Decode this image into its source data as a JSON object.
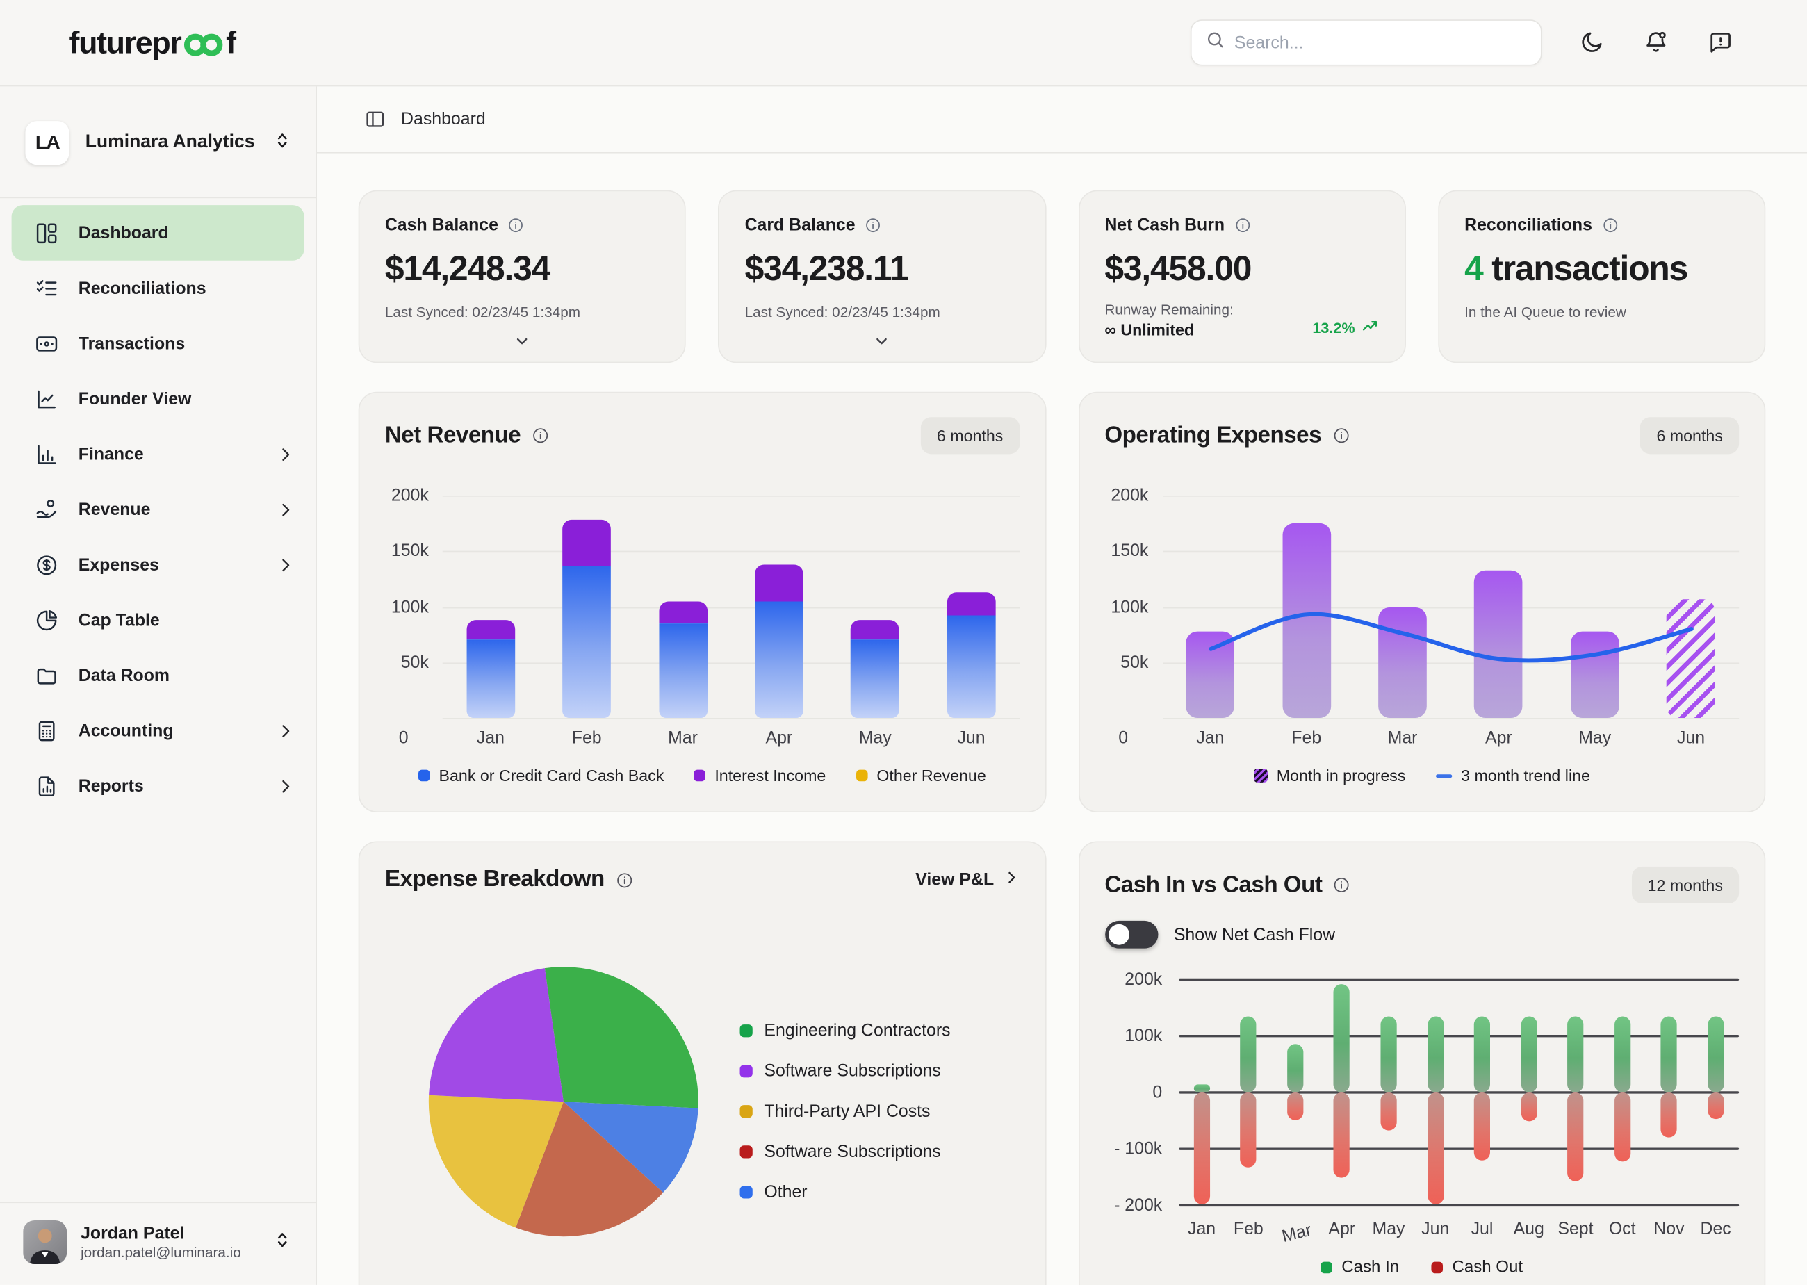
{
  "header": {
    "brand_prefix": "futurepr",
    "brand_suffix": "f",
    "brand_accent": "#2fbe56",
    "search_placeholder": "Search...",
    "icons": [
      "moon-icon",
      "bell-dot-icon",
      "feedback-bubble-icon"
    ]
  },
  "sidebar": {
    "workspace": {
      "initials": "LA",
      "name": "Luminara Analytics"
    },
    "items": [
      {
        "label": "Dashboard",
        "icon": "layout-dashboard",
        "active": true,
        "chevron": false
      },
      {
        "label": "Reconciliations",
        "icon": "list-checks",
        "active": false,
        "chevron": false
      },
      {
        "label": "Transactions",
        "icon": "credit-card",
        "active": false,
        "chevron": false
      },
      {
        "label": "Founder View",
        "icon": "line-chart",
        "active": false,
        "chevron": false
      },
      {
        "label": "Finance",
        "icon": "bar-chart",
        "active": false,
        "chevron": true
      },
      {
        "label": "Revenue",
        "icon": "hand-coin",
        "active": false,
        "chevron": true
      },
      {
        "label": "Expenses",
        "icon": "dollar-circle",
        "active": false,
        "chevron": true
      },
      {
        "label": "Cap Table",
        "icon": "pie-chart",
        "active": false,
        "chevron": false
      },
      {
        "label": "Data Room",
        "icon": "folder",
        "active": false,
        "chevron": false
      },
      {
        "label": "Accounting",
        "icon": "calculator",
        "active": false,
        "chevron": true
      },
      {
        "label": "Reports",
        "icon": "file-chart",
        "active": false,
        "chevron": true
      }
    ],
    "active_bg": "#cde8cc",
    "user": {
      "name": "Jordan Patel",
      "email": "jordan.patel@luminara.io"
    }
  },
  "breadcrumb": {
    "label": "Dashboard"
  },
  "stat_cards": [
    {
      "title": "Cash Balance",
      "value": "$14,248.34",
      "footnote": "Last Synced: 02/23/45 1:34pm"
    },
    {
      "title": "Card Balance",
      "value": "$34,238.11",
      "footnote": "Last Synced: 02/23/45 1:34pm"
    },
    {
      "title": "Net Cash Burn",
      "value": "$3,458.00",
      "footnote_label": "Runway Remaining:",
      "footnote_value": "∞ Unlimited",
      "delta": "13.2%",
      "delta_color": "#16a34a"
    },
    {
      "title": "Reconciliations",
      "value_highlight": "4",
      "value_rest": " transactions",
      "footnote": "In the AI Queue to review",
      "highlight_color": "#16a34a"
    }
  ],
  "charts": {
    "net_revenue": {
      "title": "Net Revenue",
      "badge": "6 months",
      "chart_data": {
        "type": "bar",
        "stacked": true,
        "categories": [
          "Jan",
          "Feb",
          "Mar",
          "Apr",
          "May",
          "Jun"
        ],
        "series": [
          {
            "name": "Bank or Credit Card Cash Back",
            "color": "#2d66ec",
            "values": [
              70,
              137,
              85,
              105,
              70,
              92
            ]
          },
          {
            "name": "Interest Income",
            "color": "#8a1fd8",
            "values": [
              18,
              41,
              20,
              33,
              18,
              21
            ]
          },
          {
            "name": "Other Revenue",
            "color": "#eab308",
            "values": [
              0,
              0,
              0,
              0,
              0,
              0
            ]
          }
        ],
        "unit": "k",
        "ylim": [
          0,
          200
        ],
        "y_ticks": [
          "200k",
          "150k",
          "100k",
          "50k"
        ],
        "zero_label": "0"
      },
      "legend": [
        {
          "label": "Bank or Credit Card Cash Back",
          "color": "#2563eb"
        },
        {
          "label": "Interest Income",
          "color": "#8a1fd8"
        },
        {
          "label": "Other Revenue",
          "color": "#eab308"
        }
      ]
    },
    "operating_expenses": {
      "title": "Operating Expenses",
      "badge": "6 months",
      "chart_data": {
        "type": "bar",
        "categories": [
          "Jan",
          "Feb",
          "Mar",
          "Apr",
          "May",
          "Jun"
        ],
        "values": [
          78,
          175,
          100,
          133,
          78,
          107
        ],
        "in_progress_index": 5,
        "trend_line": {
          "name": "3 month trend line",
          "color": "#2563eb",
          "values": [
            62,
            93,
            76,
            53,
            57,
            80
          ]
        },
        "unit": "k",
        "ylim": [
          0,
          200
        ],
        "y_ticks": [
          "200k",
          "150k",
          "100k",
          "50k"
        ],
        "zero_label": "0"
      },
      "legend": [
        {
          "label": "Month in progress",
          "swatch": "hatched"
        },
        {
          "label": "3 month trend line",
          "swatch": "line"
        }
      ]
    },
    "expense_breakdown": {
      "title": "Expense Breakdown",
      "link_label": "View P&L",
      "chart_data": {
        "type": "pie",
        "start_angle_deg": -98,
        "slices": [
          {
            "label": "Engineering Contractors",
            "value": 28,
            "color": "#3bb04a"
          },
          {
            "label": "Other",
            "value": 11,
            "color": "#4d80e4"
          },
          {
            "label": "Software Subscriptions",
            "value": 19,
            "color": "#c4684d"
          },
          {
            "label": "Third-Party API Costs",
            "value": 20,
            "color": "#e8c23f"
          },
          {
            "label": "Software Subscriptions",
            "value": 22,
            "color": "#a14ae6"
          }
        ]
      },
      "legend": [
        {
          "label": "Engineering Contractors",
          "color": "#16a34a"
        },
        {
          "label": "Software Subscriptions",
          "color": "#9333ea"
        },
        {
          "label": "Third-Party API Costs",
          "color": "#d9a514"
        },
        {
          "label": "Software Subscriptions",
          "color": "#b91c1c"
        },
        {
          "label": "Other",
          "color": "#2f6fed"
        }
      ]
    },
    "cash_in_out": {
      "title": "Cash In vs Cash Out",
      "badge": "12 months",
      "toggle_label": "Show Net Cash Flow",
      "toggle_on": false,
      "chart_data": {
        "type": "bar",
        "categories": [
          "Jan",
          "Feb",
          "Mar",
          "Apr",
          "May",
          "Jun",
          "Jul",
          "Aug",
          "Sept",
          "Oct",
          "Nov",
          "Dec"
        ],
        "series": [
          {
            "name": "Cash In",
            "values": [
              15,
              135,
              85,
              192,
              135,
              135,
              135,
              135,
              135,
              135,
              135,
              135
            ]
          },
          {
            "name": "Cash Out",
            "values": [
              -198,
              -132,
              -48,
              -150,
              -68,
              -198,
              -120,
              -50,
              -158,
              -123,
              -80,
              -47
            ]
          }
        ],
        "unit": "k",
        "ylim": [
          -200,
          200
        ],
        "y_ticks": [
          "200k",
          "100k",
          "0",
          "- 100k",
          "- 200k"
        ]
      },
      "legend": [
        {
          "label": "Cash In",
          "color": "#16a34a"
        },
        {
          "label": "Cash Out",
          "color": "#b91c1c"
        }
      ]
    }
  }
}
